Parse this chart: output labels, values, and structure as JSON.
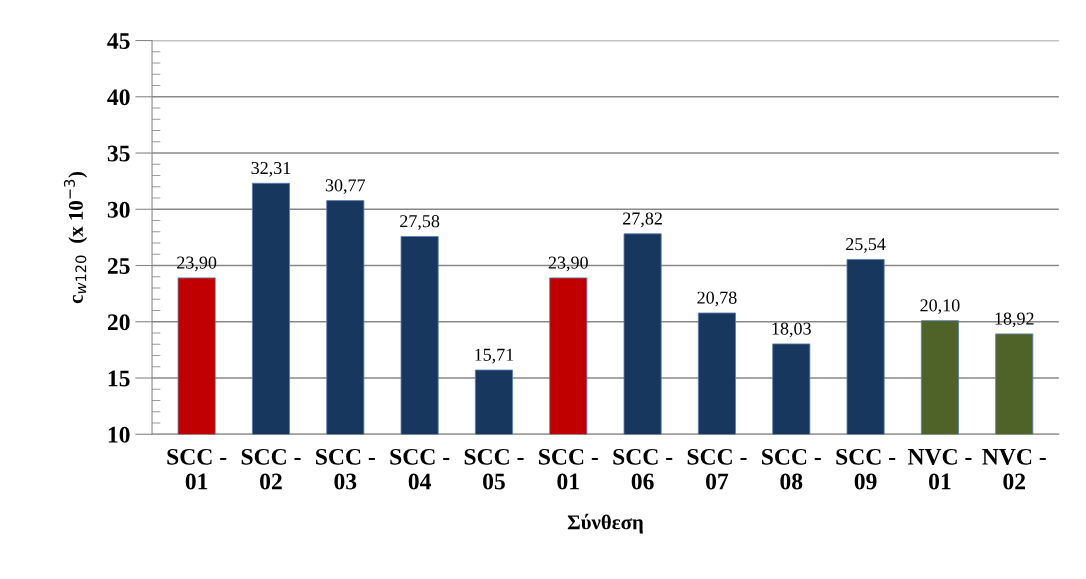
{
  "chart_data": {
    "type": "bar",
    "xlabel": "Σύνθεση",
    "ylabel": "c$_{w120}$  (x 10$^{−3}$)",
    "categories": [
      "SCC - 01",
      "SCC - 02",
      "SCC - 03",
      "SCC - 04",
      "SCC - 05",
      "SCC - 01",
      "SCC - 06",
      "SCC - 07",
      "SCC - 08",
      "SCC - 09",
      "NVC - 01",
      "NVC - 02"
    ],
    "values": [
      23.9,
      32.31,
      30.77,
      27.58,
      15.71,
      23.9,
      27.82,
      20.78,
      18.03,
      25.54,
      20.1,
      18.92
    ],
    "value_labels": [
      "23,90",
      "32,31",
      "30,77",
      "27,58",
      "15,71",
      "23,90",
      "27,82",
      "20,78",
      "18,03",
      "25,54",
      "20,10",
      "18,92"
    ],
    "colors": [
      "#c00000",
      "#17375e",
      "#17375e",
      "#17375e",
      "#17375e",
      "#c00000",
      "#17375e",
      "#17375e",
      "#17375e",
      "#17375e",
      "#4f6228",
      "#4f6228"
    ],
    "ylim": [
      10,
      45
    ],
    "yticks": [
      10,
      15,
      20,
      25,
      30,
      35,
      40,
      45
    ],
    "grid": "y",
    "legend": false
  }
}
